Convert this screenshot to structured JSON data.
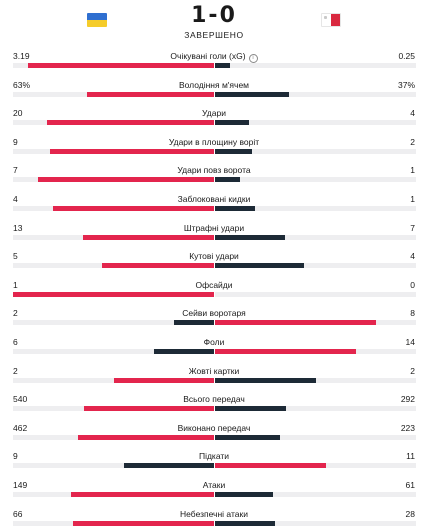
{
  "match": {
    "home_score": "1",
    "separator": "-",
    "away_score": "0",
    "status": "ЗАВЕРШЕНО",
    "home_flag_colors": [
      "#2f6fd0",
      "#f5cc2a"
    ],
    "away_flag_colors": [
      "#ffffff",
      "#d9283f"
    ]
  },
  "colors": {
    "leader": "#e3254d",
    "other": "#1d2a36",
    "track": "#eeeef0"
  },
  "stats": [
    {
      "name": "Очікувані голи (xG)",
      "home": "3.19",
      "away": "0.25",
      "home_val": 3.19,
      "away_val": 0.25,
      "info": "i"
    },
    {
      "name": "Володіння м'ячем",
      "home": "63%",
      "away": "37%",
      "home_val": 63,
      "away_val": 37
    },
    {
      "name": "Удари",
      "home": "20",
      "away": "4",
      "home_val": 20,
      "away_val": 4
    },
    {
      "name": "Удари в площину воріт",
      "home": "9",
      "away": "2",
      "home_val": 9,
      "away_val": 2
    },
    {
      "name": "Удари повз ворота",
      "home": "7",
      "away": "1",
      "home_val": 7,
      "away_val": 1
    },
    {
      "name": "Заблоковані кидки",
      "home": "4",
      "away": "1",
      "home_val": 4,
      "away_val": 1
    },
    {
      "name": "Штрафні удари",
      "home": "13",
      "away": "7",
      "home_val": 13,
      "away_val": 7
    },
    {
      "name": "Кутові удари",
      "home": "5",
      "away": "4",
      "home_val": 5,
      "away_val": 4
    },
    {
      "name": "Офсайди",
      "home": "1",
      "away": "0",
      "home_val": 1,
      "away_val": 0
    },
    {
      "name": "Сейви воротаря",
      "home": "2",
      "away": "8",
      "home_val": 2,
      "away_val": 8
    },
    {
      "name": "Фоли",
      "home": "6",
      "away": "14",
      "home_val": 6,
      "away_val": 14
    },
    {
      "name": "Жовті картки",
      "home": "2",
      "away": "2",
      "home_val": 2,
      "away_val": 2
    },
    {
      "name": "Всього передач",
      "home": "540",
      "away": "292",
      "home_val": 540,
      "away_val": 292
    },
    {
      "name": "Виконано передач",
      "home": "462",
      "away": "223",
      "home_val": 462,
      "away_val": 223
    },
    {
      "name": "Підкати",
      "home": "9",
      "away": "11",
      "home_val": 9,
      "away_val": 11
    },
    {
      "name": "Атаки",
      "home": "149",
      "away": "61",
      "home_val": 149,
      "away_val": 61
    },
    {
      "name": "Небезпечні атаки",
      "home": "66",
      "away": "28",
      "home_val": 66,
      "away_val": 28
    }
  ]
}
